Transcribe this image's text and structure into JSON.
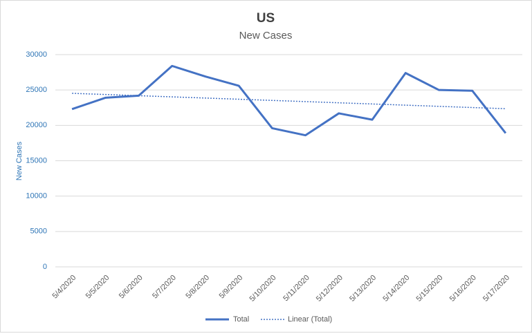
{
  "chart_data": {
    "type": "line",
    "title": "US",
    "subtitle": "New Cases",
    "y_label": "New Cases",
    "categories": [
      "5/4/2020",
      "5/5/2020",
      "5/6/2020",
      "5/7/2020",
      "5/8/2020",
      "5/9/2020",
      "5/10/2020",
      "5/11/2020",
      "5/12/2020",
      "5/13/2020",
      "5/14/2020",
      "5/15/2020",
      "5/16/2020",
      "5/17/2020"
    ],
    "series": [
      {
        "name": "Total",
        "color": "#4472c4",
        "values": [
          22300,
          23900,
          24200,
          28400,
          26900,
          25600,
          19600,
          18600,
          21700,
          20800,
          27400,
          25000,
          24900,
          18900
        ],
        "trendline": {
          "name": "Linear (Total)",
          "type": "linear",
          "style": "dotted"
        }
      }
    ],
    "ylim": [
      0,
      30000
    ],
    "yticks": [
      0,
      5000,
      10000,
      15000,
      20000,
      25000,
      30000
    ],
    "grid": true,
    "legend": "bottom"
  }
}
